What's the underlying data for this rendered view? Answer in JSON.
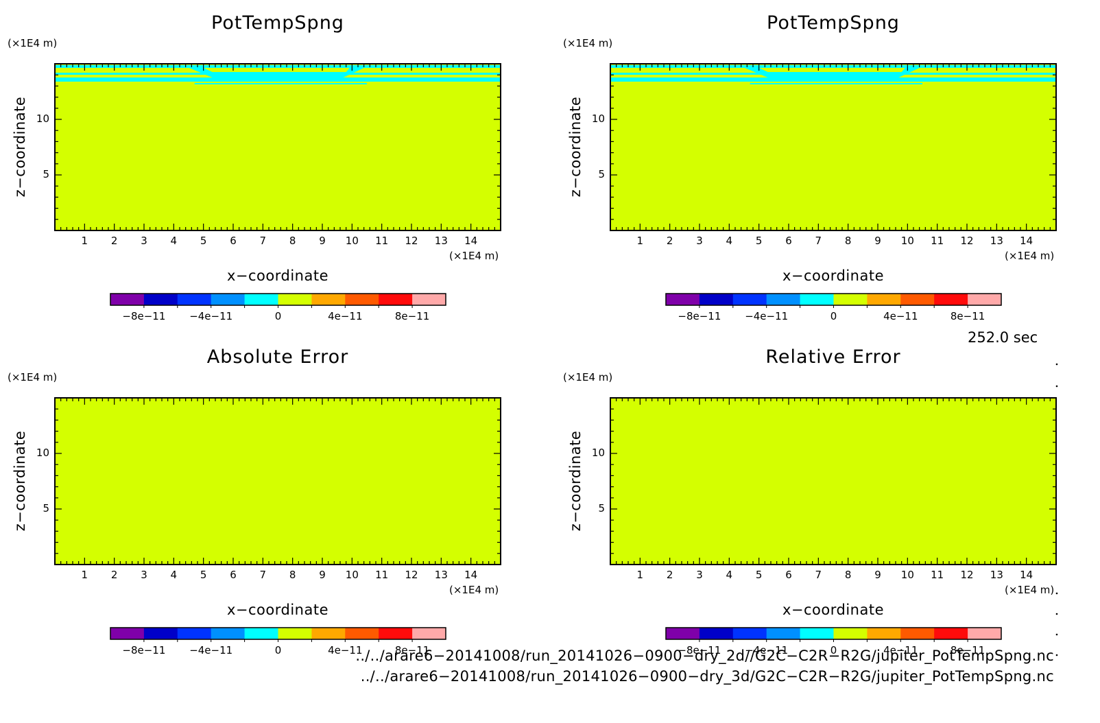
{
  "panels": [
    {
      "title": "PotTempSpng",
      "pattern": "field"
    },
    {
      "title": "PotTempSpng",
      "pattern": "field"
    },
    {
      "title": "Absolute Error",
      "pattern": "flat"
    },
    {
      "title": "Relative Error",
      "pattern": "flat"
    }
  ],
  "axis_labels": {
    "x": "x−coordinate",
    "y": "z−coordinate",
    "x_unit": "(×1E4 m)",
    "y_unit": "(×1E4 m)"
  },
  "colorbar": {
    "colors": [
      "#7f00a9",
      "#0000c8",
      "#0033ff",
      "#0090ff",
      "#00ffff",
      "#d4ff00",
      "#ffa800",
      "#ff5a00",
      "#ff0b0b",
      "#ffa9a9"
    ],
    "bounds": [
      -1e-10,
      -8e-11,
      -6e-11,
      -4e-11,
      -2e-11,
      0,
      2e-11,
      4e-11,
      6e-11,
      8e-11,
      1e-10
    ],
    "tick_labels": [
      "−8e−11",
      "−4e−11",
      "0",
      "4e−11",
      "8e−11"
    ],
    "tick_values": [
      -8e-11,
      -4e-11,
      0,
      4e-11,
      8e-11
    ]
  },
  "time_label": "252.0 sec",
  "file_paths": [
    "../../arare6−20141008/run_20141026−0900−dry_2d//G2C−C2R−R2G/jupiter_PotTempSpng.nc",
    "../../arare6−20141008/run_20141026−0900−dry_3d/G2C−C2R−R2G/jupiter_PotTempSpng.nc"
  ],
  "chart_data": [
    {
      "type": "heatmap",
      "title": "PotTempSpng",
      "xlabel": "x−coordinate",
      "ylabel": "z−coordinate",
      "xlim": [
        0,
        15
      ],
      "ylim": [
        0,
        15
      ],
      "xticks": [
        1,
        2,
        3,
        4,
        5,
        6,
        7,
        8,
        9,
        10,
        11,
        12,
        13,
        14
      ],
      "yticks": [
        5,
        10
      ],
      "background_value": 0,
      "features": [
        {
          "desc": "near-zero negative bands",
          "color": "#00ffff",
          "z": [
            13.3,
            14.8
          ],
          "x": [
            0,
            15
          ]
        },
        {
          "desc": "thin line",
          "color": "#00ffff",
          "z": [
            13.0,
            13.0
          ],
          "x": [
            4.7,
            10.5
          ]
        }
      ]
    },
    {
      "type": "heatmap",
      "title": "PotTempSpng",
      "xlabel": "x−coordinate",
      "ylabel": "z−coordinate",
      "xlim": [
        0,
        15
      ],
      "ylim": [
        0,
        15
      ],
      "xticks": [
        1,
        2,
        3,
        4,
        5,
        6,
        7,
        8,
        9,
        10,
        11,
        12,
        13,
        14
      ],
      "yticks": [
        5,
        10
      ],
      "background_value": 0,
      "features": [
        {
          "desc": "near-zero negative bands",
          "color": "#00ffff",
          "z": [
            13.3,
            14.8
          ],
          "x": [
            0,
            15
          ]
        },
        {
          "desc": "thin line",
          "color": "#00ffff",
          "z": [
            13.0,
            13.0
          ],
          "x": [
            4.7,
            10.5
          ]
        }
      ]
    },
    {
      "type": "heatmap",
      "title": "Absolute Error",
      "xlabel": "x−coordinate",
      "ylabel": "z−coordinate",
      "xlim": [
        0,
        15
      ],
      "ylim": [
        0,
        15
      ],
      "xticks": [
        1,
        2,
        3,
        4,
        5,
        6,
        7,
        8,
        9,
        10,
        11,
        12,
        13,
        14
      ],
      "yticks": [
        5,
        10
      ],
      "background_value": 0
    },
    {
      "type": "heatmap",
      "title": "Relative Error",
      "xlabel": "x−coordinate",
      "ylabel": "z−coordinate",
      "xlim": [
        0,
        15
      ],
      "ylim": [
        0,
        15
      ],
      "xticks": [
        1,
        2,
        3,
        4,
        5,
        6,
        7,
        8,
        9,
        10,
        11,
        12,
        13,
        14
      ],
      "yticks": [
        5,
        10
      ],
      "background_value": 0
    }
  ]
}
